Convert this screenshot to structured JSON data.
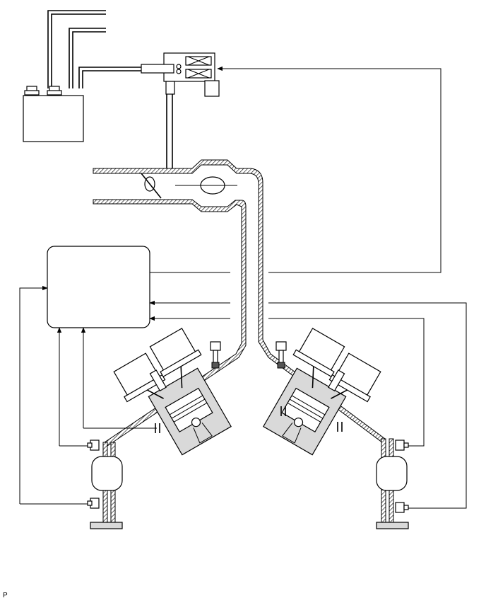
{
  "figure": {
    "corner_label": "P"
  }
}
